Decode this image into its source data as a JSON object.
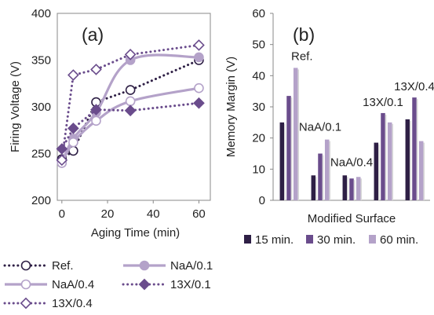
{
  "colors": {
    "dark": "#2e1f45",
    "mid": "#6a4c8c",
    "light": "#b4a2c9",
    "axis": "#888888"
  },
  "chart_data": [
    {
      "type": "line",
      "panel_label": "(a)",
      "title": "",
      "xlabel": "Aging Time (min)",
      "ylabel": "Firing Voltage (V)",
      "xlim": [
        -2,
        65
      ],
      "ylim": [
        200,
        400
      ],
      "xticks": [
        0,
        20,
        40,
        60
      ],
      "yticks": [
        200,
        250,
        300,
        350,
        400
      ],
      "grid": false,
      "series": [
        {
          "name": "Ref.",
          "line": "dotted",
          "marker": "open-circle",
          "color": "dark",
          "x": [
            0,
            5,
            15,
            30,
            60
          ],
          "y": [
            244,
            253,
            305,
            318,
            350
          ]
        },
        {
          "name": "NaA/0.1",
          "line": "solid",
          "marker": "filled-circle",
          "color": "light",
          "x": [
            0,
            5,
            15,
            30,
            60
          ],
          "y": [
            240,
            266,
            294,
            350,
            353
          ]
        },
        {
          "name": "NaA/0.4",
          "line": "solid",
          "marker": "open-circle",
          "color": "light",
          "x": [
            0,
            5,
            15,
            30,
            60
          ],
          "y": [
            240,
            262,
            285,
            306,
            320
          ]
        },
        {
          "name": "13X/0.1",
          "line": "dotted",
          "marker": "filled-diamond",
          "color": "mid",
          "x": [
            0,
            5,
            15,
            30,
            60
          ],
          "y": [
            255,
            277,
            297,
            296,
            304
          ]
        },
        {
          "name": "13X/0.4",
          "line": "dotted",
          "marker": "open-diamond",
          "color": "mid",
          "x": [
            0,
            5,
            15,
            30,
            60
          ],
          "y": [
            243,
            334,
            340,
            356,
            366
          ]
        }
      ]
    },
    {
      "type": "bar",
      "panel_label": "(b)",
      "title": "",
      "xlabel": "Modified Surface",
      "ylabel": "Memory Margin (V)",
      "ylim": [
        0,
        60
      ],
      "yticks": [
        0,
        10,
        20,
        30,
        40,
        50,
        60
      ],
      "grid": false,
      "categories": [
        "Ref.",
        "NaA/0.1",
        "NaA/0.4",
        "13X/0.1",
        "13X/0.4"
      ],
      "series": [
        {
          "name": "15 min.",
          "color": "dark",
          "values": [
            25,
            8,
            8,
            18.5,
            26
          ]
        },
        {
          "name": "30 min.",
          "color": "mid",
          "values": [
            33.5,
            15,
            7,
            28,
            33
          ]
        },
        {
          "name": "60 min.",
          "color": "light",
          "values": [
            42.5,
            19.5,
            7.5,
            25,
            19
          ]
        }
      ]
    }
  ]
}
